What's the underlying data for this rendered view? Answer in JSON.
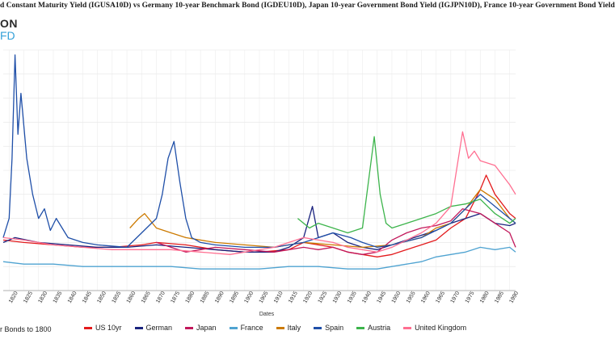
{
  "header": {
    "title": "d Constant Maturity Yield (IGUSA10D)  vs  Germany 10-year Benchmark Bond (IGDEU10D), Japan 10-year Government Bond Yield (IGJPN10D), France 10-year Government Bond Yield",
    "logo_top": "ON",
    "logo_bottom": "FD"
  },
  "footnote": "r Bonds to 1800",
  "chart_data": {
    "type": "line",
    "title": "d Constant Maturity Yield (IGUSA10D)  vs  Germany 10-year Benchmark Bond (IGDEU10D), Japan 10-year Government Bond Yield (IGJPN10D), France 10-year Government Bond Yield",
    "xlabel": "Dates",
    "ylabel": "",
    "xlim": [
      1818,
      1992
    ],
    "ylim": [
      0,
      100
    ],
    "y_axis_labels_visible": false,
    "grid": true,
    "legend_position": "bottom",
    "x_ticks": [
      1820,
      1825,
      1830,
      1835,
      1840,
      1845,
      1850,
      1855,
      1860,
      1865,
      1870,
      1875,
      1880,
      1885,
      1890,
      1895,
      1900,
      1905,
      1910,
      1915,
      1920,
      1925,
      1930,
      1935,
      1940,
      1945,
      1950,
      1955,
      1960,
      1965,
      1970,
      1975,
      1980,
      1985,
      1990
    ],
    "series": [
      {
        "name": "US 10yr",
        "color": "#e31a1c",
        "x": [
          1818,
          1825,
          1835,
          1845,
          1855,
          1865,
          1870,
          1880,
          1890,
          1900,
          1905,
          1915,
          1920,
          1925,
          1930,
          1935,
          1940,
          1945,
          1950,
          1955,
          1960,
          1965,
          1970,
          1975,
          1980,
          1982,
          1985,
          1990,
          1992
        ],
        "y": [
          21,
          20,
          19,
          18,
          18,
          19,
          20,
          19,
          17,
          16,
          16,
          17,
          20,
          19,
          18,
          16,
          15,
          14,
          15,
          17,
          19,
          21,
          26,
          30,
          42,
          48,
          40,
          32,
          30
        ]
      },
      {
        "name": "German",
        "color": "#1a237e",
        "x": [
          1818,
          1822,
          1830,
          1840,
          1850,
          1860,
          1870,
          1880,
          1890,
          1900,
          1910,
          1915,
          1920,
          1923,
          1925,
          1930,
          1935,
          1940,
          1945,
          1950,
          1955,
          1960,
          1965,
          1970,
          1975,
          1980,
          1985,
          1990,
          1992
        ],
        "y": [
          20,
          22,
          20,
          19,
          18,
          18,
          19,
          18,
          17,
          16,
          16,
          18,
          22,
          35,
          22,
          24,
          20,
          18,
          17,
          19,
          21,
          23,
          25,
          28,
          30,
          32,
          28,
          27,
          28
        ]
      },
      {
        "name": "Japan",
        "color": "#c2185b",
        "x": [
          1870,
          1875,
          1880,
          1885,
          1890,
          1900,
          1910,
          1920,
          1925,
          1930,
          1935,
          1940,
          1945,
          1950,
          1955,
          1960,
          1965,
          1970,
          1974,
          1980,
          1985,
          1990,
          1992
        ],
        "y": [
          20,
          18,
          16,
          17,
          18,
          17,
          16,
          18,
          17,
          18,
          16,
          15,
          16,
          21,
          24,
          26,
          27,
          29,
          34,
          32,
          28,
          24,
          18
        ]
      },
      {
        "name": "France",
        "color": "#4fa3d1",
        "x": [
          1818,
          1825,
          1835,
          1845,
          1855,
          1865,
          1875,
          1885,
          1895,
          1905,
          1915,
          1925,
          1935,
          1945,
          1950,
          1955,
          1960,
          1965,
          1970,
          1975,
          1980,
          1985,
          1990,
          1992
        ],
        "y": [
          12,
          11,
          11,
          10,
          10,
          10,
          10,
          9,
          9,
          9,
          10,
          10,
          9,
          9,
          10,
          11,
          12,
          14,
          15,
          16,
          18,
          17,
          18,
          16
        ]
      },
      {
        "name": "Italy",
        "color": "#cc7a00",
        "x": [
          1861,
          1864,
          1866,
          1870,
          1875,
          1880,
          1890,
          1900,
          1910,
          1920,
          1930,
          1940,
          1950,
          1960,
          1965,
          1970,
          1975,
          1980,
          1985,
          1990,
          1992
        ],
        "y": [
          26,
          30,
          32,
          26,
          24,
          22,
          20,
          19,
          18,
          20,
          19,
          18,
          19,
          22,
          26,
          28,
          34,
          42,
          38,
          30,
          28
        ]
      },
      {
        "name": "Spain",
        "color": "#1f4fa8",
        "x": [
          1818,
          1820,
          1821,
          1822,
          1823,
          1824,
          1826,
          1828,
          1830,
          1832,
          1834,
          1836,
          1840,
          1845,
          1850,
          1860,
          1865,
          1870,
          1872,
          1874,
          1876,
          1878,
          1880,
          1882,
          1885,
          1890,
          1900,
          1910,
          1920,
          1930,
          1936,
          1940,
          1945,
          1950,
          1960,
          1970,
          1975,
          1980,
          1985,
          1990,
          1992
        ],
        "y": [
          22,
          30,
          55,
          98,
          65,
          82,
          55,
          40,
          30,
          34,
          25,
          30,
          22,
          20,
          19,
          18,
          24,
          30,
          40,
          55,
          62,
          45,
          30,
          22,
          20,
          19,
          18,
          18,
          20,
          24,
          22,
          20,
          18,
          19,
          22,
          28,
          34,
          40,
          35,
          30,
          28
        ]
      },
      {
        "name": "Austria",
        "color": "#3cb44b",
        "x": [
          1918,
          1922,
          1925,
          1930,
          1935,
          1940,
          1944,
          1946,
          1948,
          1950,
          1955,
          1960,
          1965,
          1970,
          1975,
          1980,
          1985,
          1990,
          1992
        ],
        "y": [
          30,
          26,
          28,
          26,
          24,
          26,
          64,
          40,
          28,
          26,
          28,
          30,
          32,
          35,
          36,
          38,
          32,
          28,
          30
        ]
      },
      {
        "name": "United Kingdom",
        "color": "#ff6f91",
        "x": [
          1818,
          1825,
          1835,
          1845,
          1855,
          1865,
          1875,
          1885,
          1895,
          1900,
          1910,
          1920,
          1925,
          1930,
          1935,
          1940,
          1945,
          1950,
          1955,
          1960,
          1965,
          1970,
          1974,
          1976,
          1978,
          1980,
          1985,
          1990,
          1992
        ],
        "y": [
          22,
          21,
          19,
          18,
          17,
          17,
          17,
          16,
          15,
          16,
          18,
          22,
          21,
          20,
          18,
          17,
          16,
          18,
          21,
          24,
          28,
          35,
          66,
          55,
          58,
          54,
          52,
          44,
          40
        ]
      }
    ]
  }
}
